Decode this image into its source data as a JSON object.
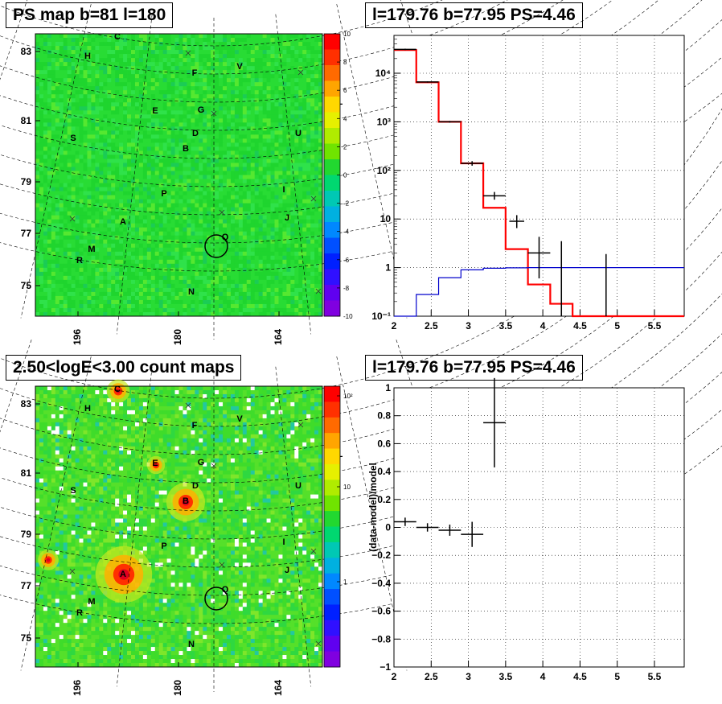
{
  "colors": {
    "map_background": "#22d830",
    "model_line": "#ff0000",
    "background_line": "#0000cc",
    "data_points": "#000000"
  },
  "panels": {
    "ps_map": {
      "title": "PS map b=81 l=180",
      "y_ticks": [
        "83",
        "81",
        "79",
        "77",
        "75"
      ],
      "x_ticks": [
        "196",
        "180",
        "164"
      ],
      "colorbar_ticks": [
        "10",
        "8",
        "6",
        "4",
        "2",
        "0",
        "-2",
        "-4",
        "-6",
        "-8",
        "-10"
      ]
    },
    "count_map": {
      "title": "2.50<logE<3.00 count maps",
      "y_ticks": [
        "83",
        "81",
        "79",
        "77",
        "75"
      ],
      "x_ticks": [
        "196",
        "180",
        "164"
      ],
      "colorbar_ticks": [
        "10²",
        "10",
        "1"
      ]
    },
    "spectrum": {
      "title": "l=179.76 b=77.95 PS=4.46"
    },
    "residual": {
      "title": "l=179.76 b=77.95 PS=4.46"
    }
  },
  "source_labels": [
    "C",
    "H",
    "F",
    "V",
    "T",
    "E",
    "G",
    "L",
    "D",
    "U",
    "S",
    "B",
    "I",
    "P",
    "J",
    "O",
    "A",
    "Q",
    "M",
    "R",
    "N",
    "K"
  ],
  "chart_data": [
    {
      "type": "line",
      "title": "l=179.76 b=77.95 PS=4.46",
      "xlabel": "",
      "ylabel": "",
      "y_scale": "log",
      "xlim": [
        2,
        5.9
      ],
      "ylim": [
        0.1,
        60000
      ],
      "x_ticks": [
        2,
        2.5,
        3,
        3.5,
        4,
        4.5,
        5,
        5.5
      ],
      "x_tick_labels": [
        "2",
        "2.5",
        "3",
        "3.5",
        "4",
        "4.5",
        "5",
        "5.5"
      ],
      "y_ticks": [
        0.1,
        1,
        10,
        100,
        1000,
        10000
      ],
      "y_tick_labels": [
        "10⁻¹",
        "1",
        "10",
        "10²",
        "10³",
        "10⁴"
      ],
      "grid": true,
      "series": [
        {
          "kind": "histogram",
          "color": "#ff0000",
          "edges": [
            2.0,
            2.3,
            2.6,
            2.9,
            3.2,
            3.5,
            3.8,
            4.1,
            4.4,
            4.7,
            5.0,
            5.3,
            5.6,
            5.9
          ],
          "values": [
            30000,
            6500,
            1000,
            140,
            17,
            2.4,
            0.45,
            0.18,
            0.1,
            0.1,
            0.1,
            0.1,
            0.1
          ]
        },
        {
          "kind": "histogram",
          "color": "#0000cc",
          "edges": [
            2.0,
            2.3,
            2.6,
            2.9,
            3.2,
            3.5,
            3.8,
            4.1,
            4.4,
            4.7,
            5.0,
            5.3,
            5.6,
            5.9
          ],
          "values": [
            0.1,
            0.28,
            0.62,
            0.9,
            0.97,
            0.99,
            1.0,
            1.0,
            1.0,
            1.0,
            1.0,
            1.0,
            1.0
          ]
        },
        {
          "kind": "errorbar",
          "color": "#000000",
          "x": [
            2.15,
            2.45,
            2.75,
            3.05,
            3.35,
            3.65,
            3.95,
            4.25,
            4.85
          ],
          "y": [
            31000,
            6600,
            1000,
            140,
            30,
            9,
            2,
            1,
            1
          ],
          "x_err": [
            0.15,
            0.15,
            0.15,
            0.15,
            0.15,
            0.1,
            0.15,
            0.0,
            0.0
          ],
          "y_low": [
            30000,
            6400,
            960,
            125,
            25,
            6.5,
            0.6,
            0.1,
            0.1
          ],
          "y_high": [
            32000,
            6800,
            1040,
            155,
            36,
            12,
            4.3,
            3.5,
            1.9
          ]
        }
      ]
    },
    {
      "type": "scatter",
      "title": "l=179.76 b=77.95 PS=4.46",
      "xlabel": "",
      "ylabel": "(data-model)/model",
      "xlim": [
        2,
        5.9
      ],
      "ylim": [
        -1,
        1
      ],
      "x_ticks": [
        2,
        2.5,
        3,
        3.5,
        4,
        4.5,
        5,
        5.5
      ],
      "x_tick_labels": [
        "2",
        "2.5",
        "3",
        "3.5",
        "4",
        "4.5",
        "5",
        "5.5"
      ],
      "y_ticks": [
        -1,
        -0.8,
        -0.6,
        -0.4,
        -0.2,
        0,
        0.2,
        0.4,
        0.6,
        0.8,
        1
      ],
      "y_tick_labels": [
        "−1",
        "−0.8",
        "−0.6",
        "−0.4",
        "−0.2",
        "0",
        "0.2",
        "0.4",
        "0.6",
        "0.8",
        "1"
      ],
      "grid": true,
      "series": [
        {
          "kind": "errorbar",
          "color": "#000000",
          "x": [
            2.15,
            2.45,
            2.75,
            3.05,
            3.35
          ],
          "y": [
            0.04,
            0.0,
            -0.02,
            -0.05,
            0.75
          ],
          "x_err": [
            0.15,
            0.15,
            0.15,
            0.15,
            0.15
          ],
          "y_err": [
            0.03,
            0.03,
            0.04,
            0.09,
            0.32
          ]
        }
      ]
    }
  ]
}
